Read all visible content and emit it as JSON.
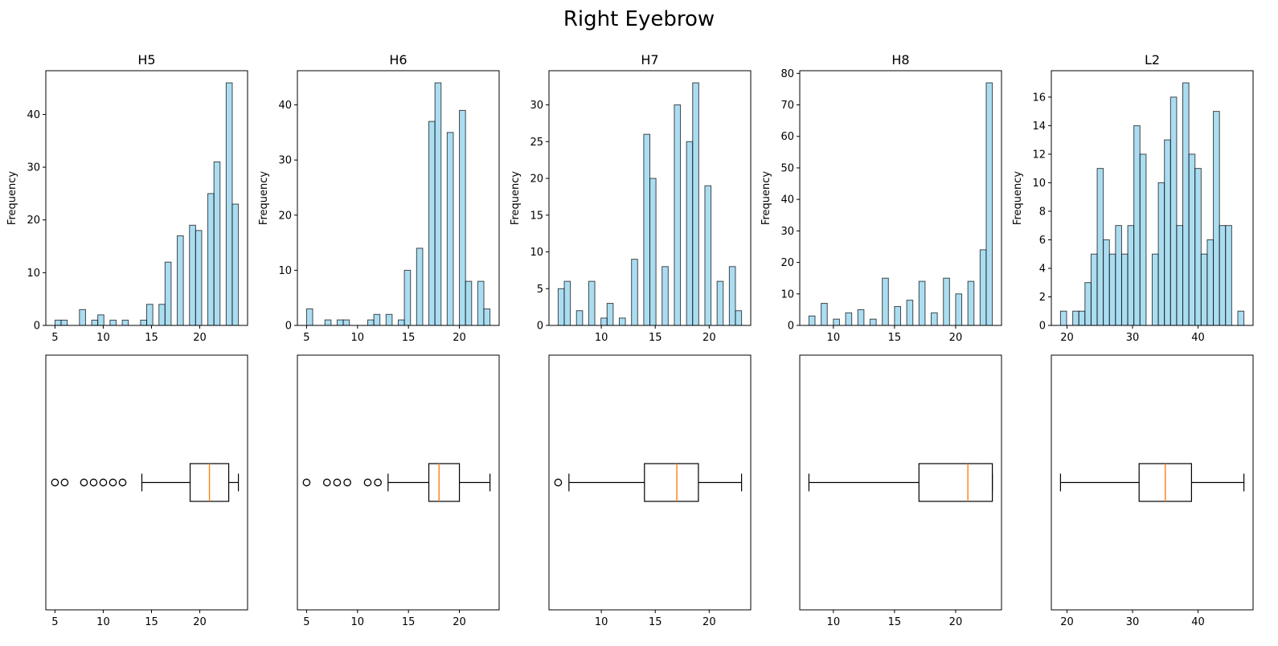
{
  "figure": {
    "title": "Right Eyebrow"
  },
  "colors": {
    "hist_fill": "#87ceeb",
    "edge": "#000000",
    "median": "#ff7f0e",
    "background": "#ffffff"
  },
  "chart_data": [
    {
      "type": "histogram",
      "title": "H5",
      "ylabel": "Frequency",
      "xlim": [
        4.05,
        24.95
      ],
      "ylim": [
        0,
        48.3
      ],
      "xticks": [
        5,
        10,
        15,
        20
      ],
      "yticks": [
        0,
        10,
        20,
        30,
        40
      ],
      "bin_edges": [
        5,
        5.633,
        6.267,
        6.9,
        7.533,
        8.167,
        8.8,
        9.433,
        10.067,
        10.7,
        11.333,
        11.967,
        12.6,
        13.233,
        13.867,
        14.5,
        15.133,
        15.767,
        16.4,
        17.033,
        17.667,
        18.3,
        18.933,
        19.567,
        20.2,
        20.833,
        21.467,
        22.1,
        22.733,
        23.367,
        24
      ],
      "counts": [
        1,
        1,
        0,
        0,
        3,
        0,
        1,
        2,
        0,
        1,
        0,
        1,
        0,
        0,
        1,
        4,
        0,
        4,
        12,
        0,
        17,
        0,
        19,
        18,
        0,
        25,
        31,
        0,
        46,
        23
      ]
    },
    {
      "type": "histogram",
      "title": "H6",
      "ylabel": "Frequency",
      "xlim": [
        4.1,
        23.9
      ],
      "ylim": [
        0,
        46.2
      ],
      "xticks": [
        5,
        10,
        15,
        20
      ],
      "yticks": [
        0,
        10,
        20,
        30,
        40
      ],
      "bin_edges": [
        5,
        5.6,
        6.2,
        6.8,
        7.4,
        8,
        8.6,
        9.2,
        9.8,
        10.4,
        11,
        11.6,
        12.2,
        12.8,
        13.4,
        14,
        14.6,
        15.2,
        15.8,
        16.4,
        17,
        17.6,
        18.2,
        18.8,
        19.4,
        20,
        20.6,
        21.2,
        21.8,
        22.4,
        23
      ],
      "counts": [
        3,
        0,
        0,
        1,
        0,
        1,
        1,
        0,
        0,
        0,
        1,
        2,
        0,
        2,
        0,
        1,
        10,
        0,
        14,
        0,
        37,
        44,
        0,
        35,
        0,
        39,
        8,
        0,
        8,
        3
      ]
    },
    {
      "type": "histogram",
      "title": "H7",
      "ylabel": "Frequency",
      "xlim": [
        5.15,
        23.85
      ],
      "ylim": [
        0,
        34.65
      ],
      "xticks": [
        10,
        15,
        20
      ],
      "yticks": [
        0,
        5,
        10,
        15,
        20,
        25,
        30
      ],
      "bin_edges": [
        6,
        6.567,
        7.133,
        7.7,
        8.267,
        8.833,
        9.4,
        9.967,
        10.533,
        11.1,
        11.667,
        12.233,
        12.8,
        13.367,
        13.933,
        14.5,
        15.067,
        15.633,
        16.2,
        16.767,
        17.333,
        17.9,
        18.467,
        19.033,
        19.6,
        20.167,
        20.733,
        21.3,
        21.867,
        22.433,
        23
      ],
      "counts": [
        5,
        6,
        0,
        2,
        0,
        6,
        0,
        1,
        3,
        0,
        1,
        0,
        9,
        0,
        26,
        20,
        0,
        8,
        0,
        30,
        0,
        25,
        33,
        0,
        19,
        0,
        6,
        0,
        8,
        2
      ]
    },
    {
      "type": "histogram",
      "title": "H8",
      "ylabel": "Frequency",
      "xlim": [
        7.25,
        23.75
      ],
      "ylim": [
        0,
        80.85
      ],
      "xticks": [
        10,
        15,
        20
      ],
      "yticks": [
        0,
        10,
        20,
        30,
        40,
        50,
        60,
        70,
        80
      ],
      "bin_edges": [
        8,
        8.5,
        9,
        9.5,
        10,
        10.5,
        11,
        11.5,
        12,
        12.5,
        13,
        13.5,
        14,
        14.5,
        15,
        15.5,
        16,
        16.5,
        17,
        17.5,
        18,
        18.5,
        19,
        19.5,
        20,
        20.5,
        21,
        21.5,
        22,
        22.5,
        23
      ],
      "counts": [
        3,
        0,
        7,
        0,
        2,
        0,
        4,
        0,
        5,
        0,
        2,
        0,
        15,
        0,
        6,
        0,
        8,
        0,
        14,
        0,
        4,
        0,
        15,
        0,
        10,
        0,
        14,
        0,
        24,
        77
      ]
    },
    {
      "type": "histogram",
      "title": "L2",
      "ylabel": "Frequency",
      "xlim": [
        17.6,
        48.4
      ],
      "ylim": [
        0,
        17.85
      ],
      "xticks": [
        20,
        30,
        40
      ],
      "yticks": [
        0,
        2,
        4,
        6,
        8,
        10,
        12,
        14,
        16
      ],
      "bin_edges": [
        19,
        19.933,
        20.867,
        21.8,
        22.733,
        23.667,
        24.6,
        25.533,
        26.467,
        27.4,
        28.333,
        29.267,
        30.2,
        31.133,
        32.067,
        33,
        33.933,
        34.867,
        35.8,
        36.733,
        37.667,
        38.6,
        39.533,
        40.467,
        41.4,
        42.333,
        43.267,
        44.2,
        45.133,
        46.067,
        47
      ],
      "counts": [
        1,
        0,
        1,
        1,
        3,
        5,
        11,
        6,
        5,
        7,
        5,
        7,
        14,
        12,
        0,
        5,
        10,
        13,
        16,
        7,
        17,
        12,
        11,
        5,
        6,
        15,
        7,
        7,
        0,
        1
      ]
    },
    {
      "type": "boxplot",
      "orientation": "horizontal",
      "xlim": [
        4.05,
        24.95
      ],
      "xticks": [
        5,
        10,
        15,
        20
      ],
      "whisker_low": 14,
      "q1": 19,
      "median": 21,
      "q3": 23,
      "whisker_high": 24,
      "outliers": [
        5,
        6,
        8,
        9,
        10,
        11,
        12
      ]
    },
    {
      "type": "boxplot",
      "orientation": "horizontal",
      "xlim": [
        4.1,
        23.9
      ],
      "xticks": [
        5,
        10,
        15,
        20
      ],
      "whisker_low": 13,
      "q1": 17,
      "median": 18,
      "q3": 20,
      "whisker_high": 23,
      "outliers": [
        5,
        7,
        8,
        9,
        11,
        12
      ]
    },
    {
      "type": "boxplot",
      "orientation": "horizontal",
      "xlim": [
        5.15,
        23.85
      ],
      "xticks": [
        10,
        15,
        20
      ],
      "whisker_low": 7,
      "q1": 14,
      "median": 17,
      "q3": 19,
      "whisker_high": 23,
      "outliers": [
        6
      ]
    },
    {
      "type": "boxplot",
      "orientation": "horizontal",
      "xlim": [
        7.25,
        23.75
      ],
      "xticks": [
        10,
        15,
        20
      ],
      "whisker_low": 8,
      "q1": 17,
      "median": 21,
      "q3": 23,
      "whisker_high": 23,
      "outliers": []
    },
    {
      "type": "boxplot",
      "orientation": "horizontal",
      "xlim": [
        17.6,
        48.4
      ],
      "xticks": [
        20,
        30,
        40
      ],
      "whisker_low": 19,
      "q1": 31,
      "median": 35,
      "q3": 39,
      "whisker_high": 47,
      "outliers": []
    }
  ]
}
